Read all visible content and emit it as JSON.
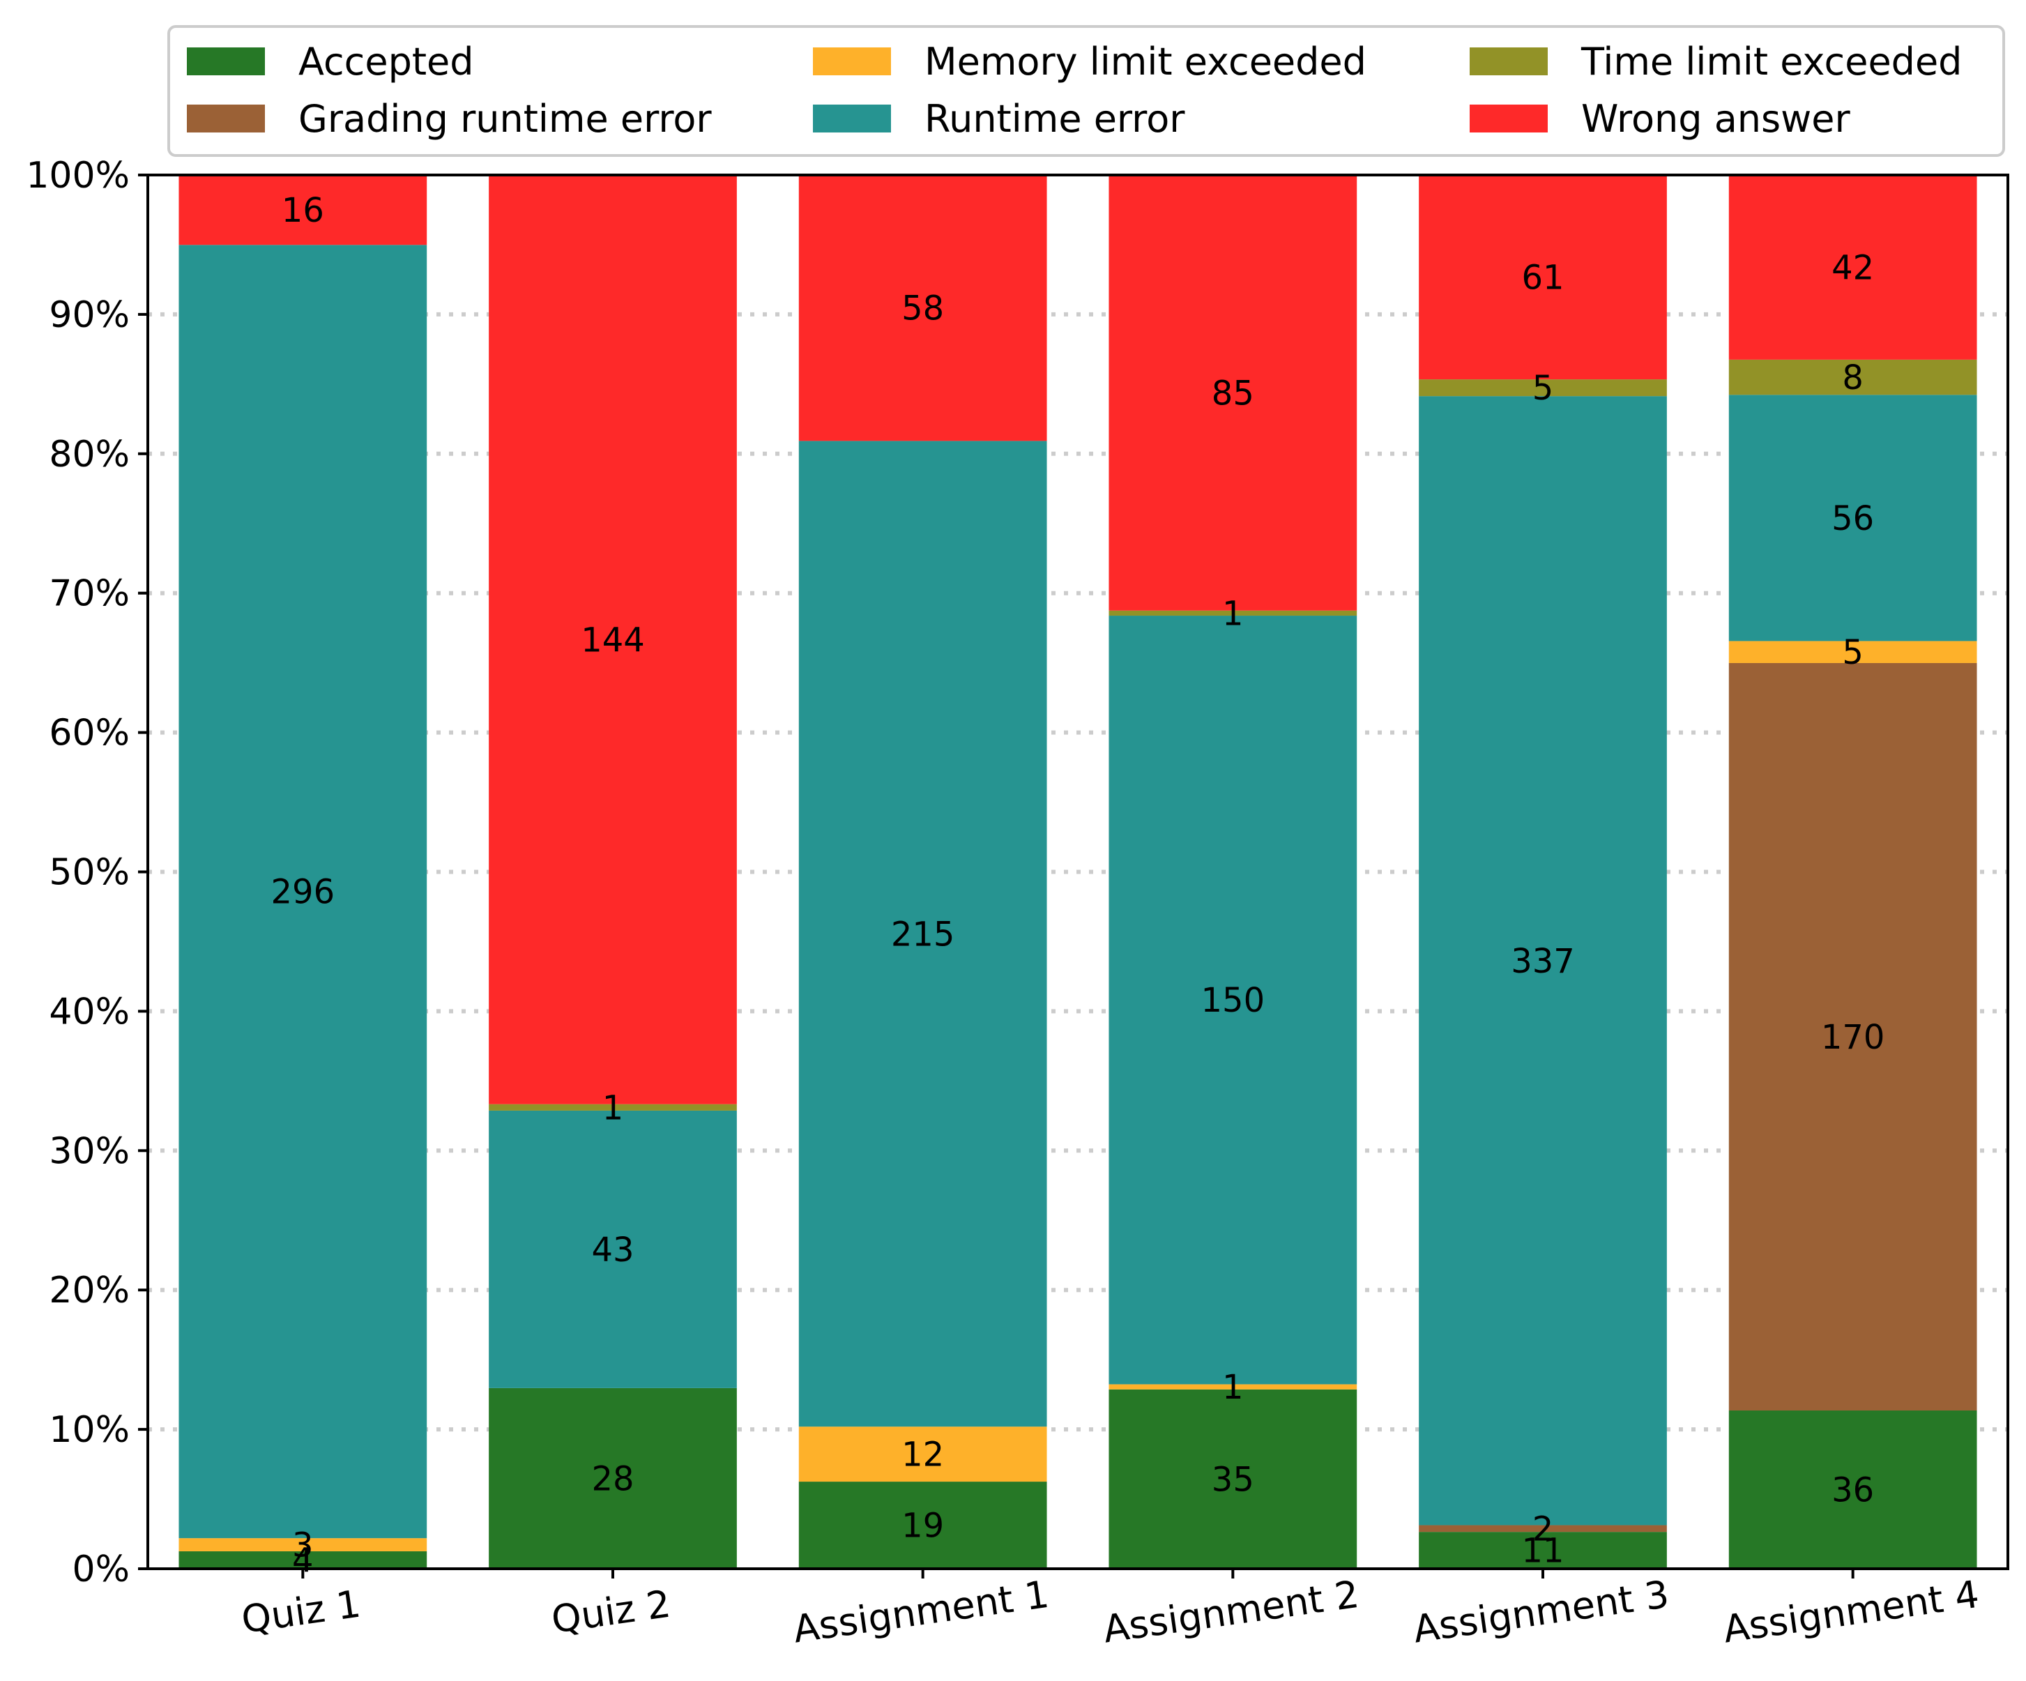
{
  "chart_data": {
    "type": "bar",
    "stacked": true,
    "normalized": true,
    "title": "",
    "xlabel": "",
    "ylabel": "",
    "ylim": [
      0,
      100
    ],
    "ytick_format": "%",
    "yticks": [
      0,
      10,
      20,
      30,
      40,
      50,
      60,
      70,
      80,
      90,
      100
    ],
    "grid": "y dotted",
    "categories": [
      "Quiz 1",
      "Quiz 2",
      "Assignment 1",
      "Assignment 2",
      "Assignment 3",
      "Assignment 4"
    ],
    "series": [
      {
        "name": "Accepted",
        "color": "#267826",
        "values": [
          4,
          28,
          19,
          35,
          11,
          36
        ]
      },
      {
        "name": "Grading runtime error",
        "color": "#9b6136",
        "values": [
          0,
          0,
          0,
          0,
          2,
          170
        ]
      },
      {
        "name": "Memory limit exceeded",
        "color": "#feb12a",
        "values": [
          3,
          0,
          12,
          1,
          0,
          5
        ]
      },
      {
        "name": "Runtime error",
        "color": "#269491",
        "values": [
          296,
          43,
          215,
          150,
          337,
          56
        ]
      },
      {
        "name": "Time limit exceeded",
        "color": "#929227",
        "values": [
          0,
          1,
          0,
          1,
          5,
          8
        ]
      },
      {
        "name": "Wrong answer",
        "color": "#fe2929",
        "values": [
          16,
          144,
          58,
          85,
          61,
          42
        ]
      }
    ],
    "legend": {
      "placement": "top",
      "columns": 3,
      "order": [
        "Accepted",
        "Grading runtime error",
        "Memory limit exceeded",
        "Runtime error",
        "Time limit exceeded",
        "Wrong answer"
      ]
    }
  }
}
